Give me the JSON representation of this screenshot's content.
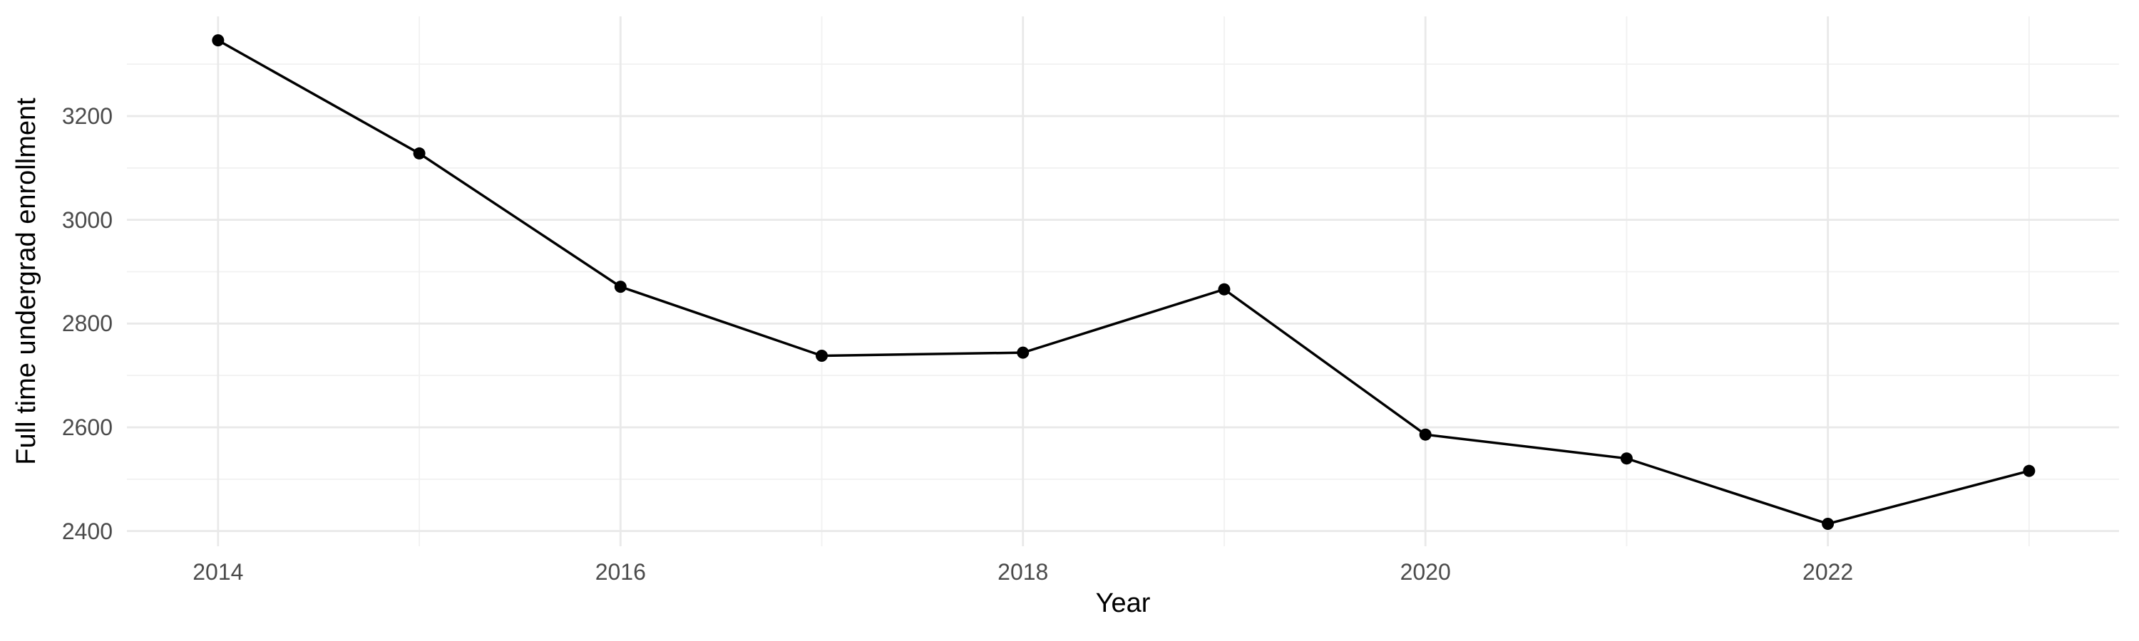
{
  "chart_data": {
    "type": "line",
    "title": "",
    "xlabel": "Year",
    "ylabel": "Full time undergrad enrollment",
    "x": [
      2014,
      2015,
      2016,
      2017,
      2018,
      2019,
      2020,
      2021,
      2022,
      2023
    ],
    "y": [
      3346,
      3128,
      2871,
      2738,
      2744,
      2866,
      2586,
      2540,
      2414,
      2516
    ],
    "series": [
      {
        "name": "Full time undergrad enrollment",
        "values": [
          3346,
          3128,
          2871,
          2738,
          2744,
          2866,
          2586,
          2540,
          2414,
          2516
        ]
      }
    ],
    "x_tick_values": [
      2014,
      2016,
      2018,
      2020,
      2022
    ],
    "x_tick_labels": [
      "2014",
      "2016",
      "2018",
      "2020",
      "2022"
    ],
    "x_minor_breaks": [
      2015,
      2017,
      2019,
      2021,
      2023
    ],
    "y_tick_values": [
      2400,
      2600,
      2800,
      3000,
      3200
    ],
    "y_tick_labels": [
      "2400",
      "2600",
      "2800",
      "3000",
      "3200"
    ],
    "y_minor_breaks": [
      2500,
      2700,
      2900,
      3100,
      3300
    ],
    "xlim": [
      2013.547,
      2023.447
    ],
    "ylim": [
      2370.7,
      3392.2
    ],
    "grid": true,
    "legend": "none",
    "marker": "point",
    "line_color": "#000000",
    "point_color": "#000000",
    "grid_major_color": "#E9E9E9",
    "grid_minor_color": "#F1F1F1",
    "axis_text_color": "#4B4B4B",
    "axis_title_color": "#000000",
    "background_color": "#FFFFFF"
  }
}
